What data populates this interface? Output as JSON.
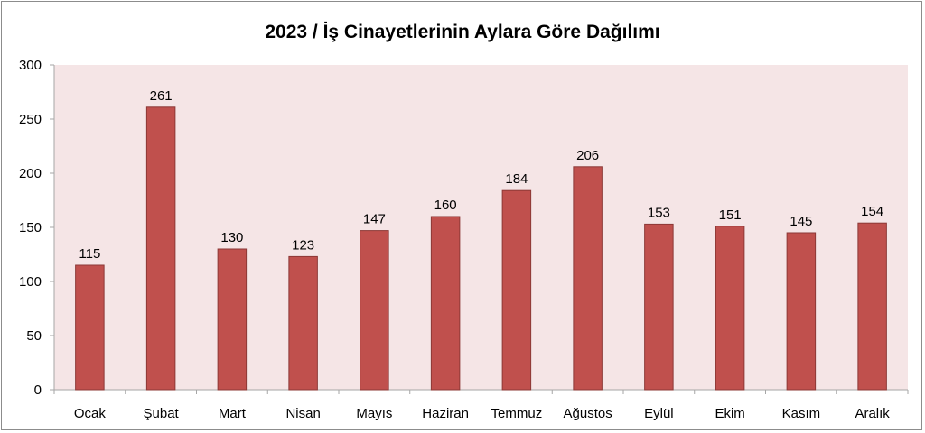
{
  "chart_data": {
    "type": "bar",
    "title": "2023 / İş Cinayetlerinin Aylara Göre Dağılımı",
    "xlabel": "",
    "ylabel": "",
    "categories": [
      "Ocak",
      "Şubat",
      "Mart",
      "Nisan",
      "Mayıs",
      "Haziran",
      "Temmuz",
      "Ağustos",
      "Eylül",
      "Ekim",
      "Kasım",
      "Aralık"
    ],
    "values": [
      115,
      261,
      130,
      123,
      147,
      160,
      184,
      206,
      153,
      151,
      145,
      154
    ],
    "ylim": [
      0,
      300
    ],
    "yticks": [
      0,
      50,
      100,
      150,
      200,
      250,
      300
    ],
    "grid": false,
    "legend": "none",
    "colors": {
      "bar": "#c0504d",
      "bar_edge": "#8c3836",
      "plot_background": "#f5e5e6",
      "axis": "#a6a6a6"
    }
  }
}
